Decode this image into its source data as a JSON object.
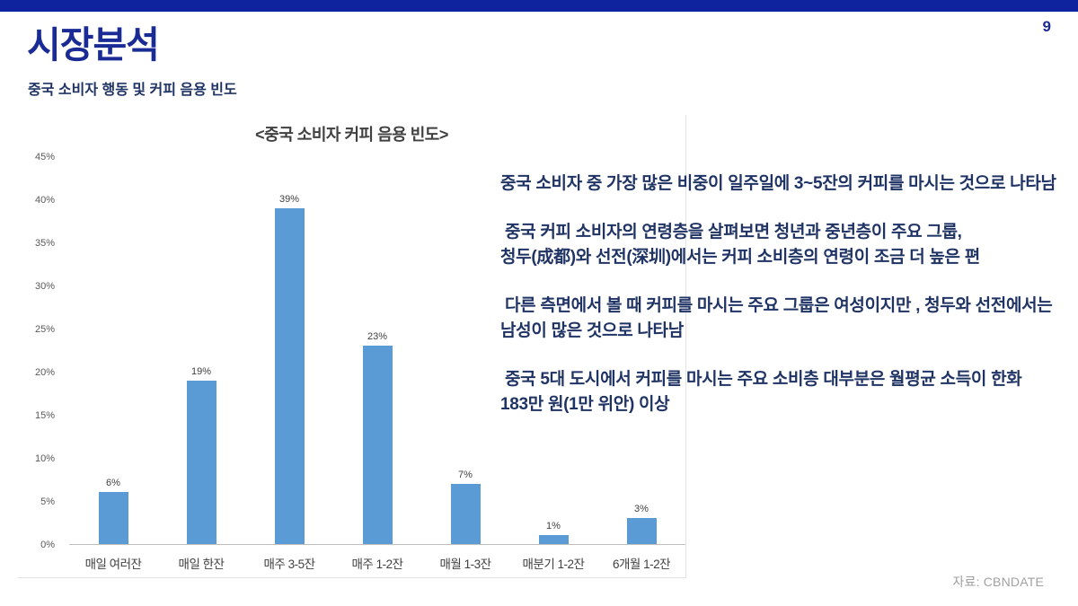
{
  "page": {
    "number": "9",
    "title": "시장분석",
    "subtitle": "중국 소비자 행동 및 커피 음용 빈도",
    "source": "자료: CBNDATE"
  },
  "colors": {
    "top_bar": "#10239E",
    "title_text": "#1A2B96",
    "body_text": "#1F3364",
    "bar_fill": "#5B9BD5",
    "axis_text": "#595959",
    "label_text": "#404040",
    "source_text": "#A0A0A0"
  },
  "chart_data": {
    "type": "bar",
    "title": "<중국 소비자 커피 음용 빈도>",
    "categories": [
      "매일 여러잔",
      "매일 한잔",
      "매주 3-5잔",
      "매주 1-2잔",
      "매월 1-3잔",
      "매분기 1-2잔",
      "6개월 1-2잔"
    ],
    "values": [
      6,
      19,
      39,
      23,
      7,
      1,
      3
    ],
    "data_labels": [
      "6%",
      "19%",
      "39%",
      "23%",
      "7%",
      "1%",
      "3%"
    ],
    "unit": "%",
    "xlabel": "",
    "ylabel": "",
    "ylim": [
      0,
      45
    ],
    "ytick_step": 5,
    "grid": false,
    "legend": "none"
  },
  "insights": {
    "paragraphs": [
      {
        "lines": [
          "중국 소비자 중 가장 많은 비중이 일주일에 3~5잔의 커피를 마시는 것으로 나타남"
        ]
      },
      {
        "lines": [
          " 중국 커피 소비자의 연령층을 살펴보면 청년과 중년층이 주요 그룹,",
          "청두(成都)와 선전(深圳)에서는 커피 소비층의 연령이 조금 더 높은 편"
        ]
      },
      {
        "lines": [
          " 다른 측면에서 볼 때 커피를 마시는 주요 그룹은 여성이지만 , 청두와 선전에서는",
          "남성이 많은 것으로 나타남"
        ]
      },
      {
        "lines": [
          " 중국 5대 도시에서 커피를 마시는 주요 소비층 대부분은 월평균 소득이 한화",
          "183만 원(1만 위안) 이상"
        ]
      }
    ]
  }
}
